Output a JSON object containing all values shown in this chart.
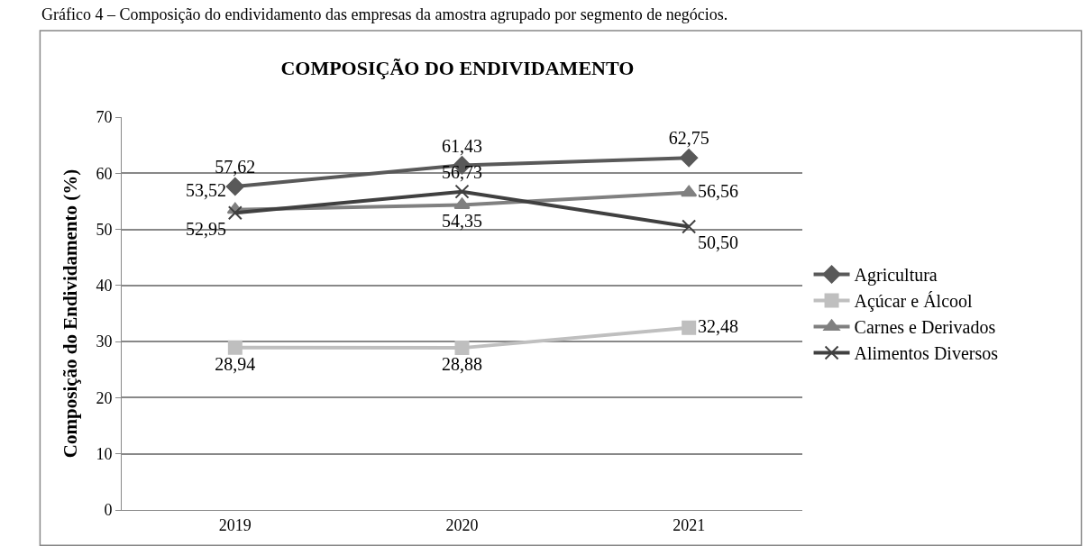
{
  "chart_data": {
    "type": "line",
    "title": "COMPOSIÇÃO DO ENDIVIDAMENTO",
    "ylabel": "Composição do Endividamento (%)",
    "annotations": [
      "Gráfico 4 – Composição do endividamento das empresas da amostra agrupado por segmento de negócios."
    ],
    "categories": [
      "2019",
      "2020",
      "2021"
    ],
    "series": [
      {
        "name": "Agricultura",
        "color": "#595959",
        "marker": "diamond",
        "values": [
          57.62,
          61.43,
          62.75
        ],
        "value_labels": [
          "57,62",
          "61,43",
          "62,75"
        ]
      },
      {
        "name": "Açúcar e Álcool",
        "color": "#bfbfbf",
        "marker": "square",
        "values": [
          28.94,
          28.88,
          32.48
        ],
        "value_labels": [
          "28,94",
          "28,88",
          "32,48"
        ]
      },
      {
        "name": "Carnes e Derivados",
        "color": "#808080",
        "marker": "triangle",
        "values": [
          53.52,
          54.35,
          56.56
        ],
        "value_labels": [
          "53,52",
          "54,35",
          "56,56"
        ]
      },
      {
        "name": "Alimentos Diversos",
        "color": "#404040",
        "marker": "cross",
        "values": [
          52.95,
          56.73,
          50.5
        ],
        "value_labels": [
          "52,95",
          "56,73",
          "50,50"
        ]
      }
    ],
    "ylim": [
      0,
      70
    ],
    "yticks": [
      0,
      10,
      20,
      30,
      40,
      50,
      60,
      70
    ],
    "grid": "y",
    "legend": "right"
  }
}
